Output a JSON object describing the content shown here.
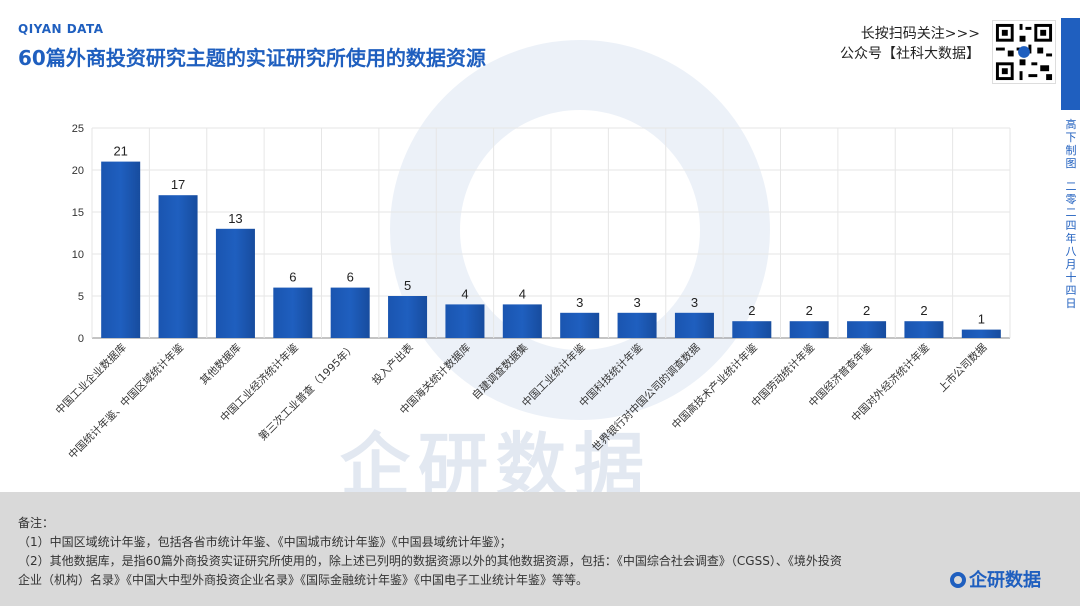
{
  "header": {
    "brand": "QIYAN DATA",
    "title": "60篇外商投资研究主题的实证研究所使用的数据资源",
    "qr_line1": "长按扫码关注>>>",
    "qr_line2": "公众号【社科大数据】"
  },
  "side": {
    "label1": "高下制图",
    "label2": "二零二四年八月十四日"
  },
  "watermark": "企研数据",
  "chart_data": {
    "type": "bar",
    "categories": [
      "中国工业企业数据库",
      "中国统计年鉴、中国区域统计年鉴",
      "其他数据库",
      "中国工业经济统计年鉴",
      "第三次工业普查（1995年）",
      "投入产出表",
      "中国海关统计数据库",
      "自建调查数据集",
      "中国工业统计年鉴",
      "中国科技统计年鉴",
      "世界银行对中国公司的调查数据",
      "中国高技术产业统计年鉴",
      "中国劳动统计年鉴",
      "中国经济普查年鉴",
      "中国对外经济统计年鉴",
      "上市公司数据"
    ],
    "values": [
      21,
      17,
      13,
      6,
      6,
      5,
      4,
      4,
      3,
      3,
      3,
      2,
      2,
      2,
      2,
      1
    ],
    "ylim": [
      0,
      25
    ],
    "yticks": [
      0,
      5,
      10,
      15,
      20,
      25
    ],
    "grid": true,
    "bar_color": "#1f5fbf"
  },
  "footer": {
    "note_title": "备注：",
    "note1": "（1）中国区域统计年鉴，包括各省市统计年鉴、《中国城市统计年鉴》《中国县域统计年鉴》；",
    "note2": "（2）其他数据库，是指60篇外商投资实证研究所使用的，除上述已列明的数据资源以外的其他数据资源，包括：《中国综合社会调查》（CGSS）、《境外投资",
    "note3": "企业（机构）名录》《中国大中型外商投资企业名录》《国际金融统计年鉴》《中国电子工业统计年鉴》等等。",
    "logo": "企研数据"
  }
}
